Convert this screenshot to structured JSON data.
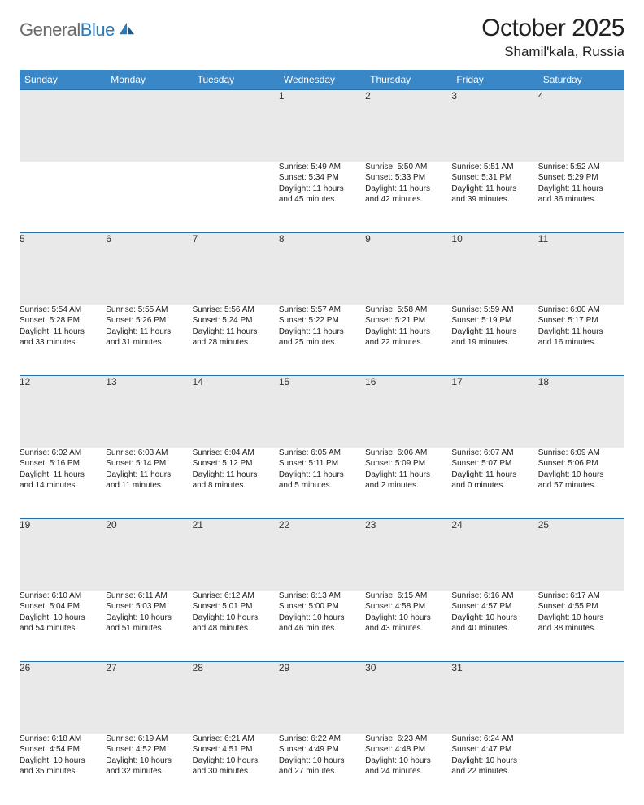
{
  "brand": {
    "part1": "General",
    "part2": "Blue"
  },
  "title": "October 2025",
  "location": "Shamil'kala, Russia",
  "colors": {
    "header_bg": "#3a87c7",
    "header_text": "#ffffff",
    "daynum_bg": "#e9e9e9",
    "border": "#2a6aa0",
    "body_text": "#212121",
    "logo_gray": "#6a6a6a",
    "logo_blue": "#2a7ab9"
  },
  "weekdays": [
    "Sunday",
    "Monday",
    "Tuesday",
    "Wednesday",
    "Thursday",
    "Friday",
    "Saturday"
  ],
  "weeks": [
    [
      null,
      null,
      null,
      {
        "n": "1",
        "sr": "Sunrise: 5:49 AM",
        "ss": "Sunset: 5:34 PM",
        "d1": "Daylight: 11 hours",
        "d2": "and 45 minutes."
      },
      {
        "n": "2",
        "sr": "Sunrise: 5:50 AM",
        "ss": "Sunset: 5:33 PM",
        "d1": "Daylight: 11 hours",
        "d2": "and 42 minutes."
      },
      {
        "n": "3",
        "sr": "Sunrise: 5:51 AM",
        "ss": "Sunset: 5:31 PM",
        "d1": "Daylight: 11 hours",
        "d2": "and 39 minutes."
      },
      {
        "n": "4",
        "sr": "Sunrise: 5:52 AM",
        "ss": "Sunset: 5:29 PM",
        "d1": "Daylight: 11 hours",
        "d2": "and 36 minutes."
      }
    ],
    [
      {
        "n": "5",
        "sr": "Sunrise: 5:54 AM",
        "ss": "Sunset: 5:28 PM",
        "d1": "Daylight: 11 hours",
        "d2": "and 33 minutes."
      },
      {
        "n": "6",
        "sr": "Sunrise: 5:55 AM",
        "ss": "Sunset: 5:26 PM",
        "d1": "Daylight: 11 hours",
        "d2": "and 31 minutes."
      },
      {
        "n": "7",
        "sr": "Sunrise: 5:56 AM",
        "ss": "Sunset: 5:24 PM",
        "d1": "Daylight: 11 hours",
        "d2": "and 28 minutes."
      },
      {
        "n": "8",
        "sr": "Sunrise: 5:57 AM",
        "ss": "Sunset: 5:22 PM",
        "d1": "Daylight: 11 hours",
        "d2": "and 25 minutes."
      },
      {
        "n": "9",
        "sr": "Sunrise: 5:58 AM",
        "ss": "Sunset: 5:21 PM",
        "d1": "Daylight: 11 hours",
        "d2": "and 22 minutes."
      },
      {
        "n": "10",
        "sr": "Sunrise: 5:59 AM",
        "ss": "Sunset: 5:19 PM",
        "d1": "Daylight: 11 hours",
        "d2": "and 19 minutes."
      },
      {
        "n": "11",
        "sr": "Sunrise: 6:00 AM",
        "ss": "Sunset: 5:17 PM",
        "d1": "Daylight: 11 hours",
        "d2": "and 16 minutes."
      }
    ],
    [
      {
        "n": "12",
        "sr": "Sunrise: 6:02 AM",
        "ss": "Sunset: 5:16 PM",
        "d1": "Daylight: 11 hours",
        "d2": "and 14 minutes."
      },
      {
        "n": "13",
        "sr": "Sunrise: 6:03 AM",
        "ss": "Sunset: 5:14 PM",
        "d1": "Daylight: 11 hours",
        "d2": "and 11 minutes."
      },
      {
        "n": "14",
        "sr": "Sunrise: 6:04 AM",
        "ss": "Sunset: 5:12 PM",
        "d1": "Daylight: 11 hours",
        "d2": "and 8 minutes."
      },
      {
        "n": "15",
        "sr": "Sunrise: 6:05 AM",
        "ss": "Sunset: 5:11 PM",
        "d1": "Daylight: 11 hours",
        "d2": "and 5 minutes."
      },
      {
        "n": "16",
        "sr": "Sunrise: 6:06 AM",
        "ss": "Sunset: 5:09 PM",
        "d1": "Daylight: 11 hours",
        "d2": "and 2 minutes."
      },
      {
        "n": "17",
        "sr": "Sunrise: 6:07 AM",
        "ss": "Sunset: 5:07 PM",
        "d1": "Daylight: 11 hours",
        "d2": "and 0 minutes."
      },
      {
        "n": "18",
        "sr": "Sunrise: 6:09 AM",
        "ss": "Sunset: 5:06 PM",
        "d1": "Daylight: 10 hours",
        "d2": "and 57 minutes."
      }
    ],
    [
      {
        "n": "19",
        "sr": "Sunrise: 6:10 AM",
        "ss": "Sunset: 5:04 PM",
        "d1": "Daylight: 10 hours",
        "d2": "and 54 minutes."
      },
      {
        "n": "20",
        "sr": "Sunrise: 6:11 AM",
        "ss": "Sunset: 5:03 PM",
        "d1": "Daylight: 10 hours",
        "d2": "and 51 minutes."
      },
      {
        "n": "21",
        "sr": "Sunrise: 6:12 AM",
        "ss": "Sunset: 5:01 PM",
        "d1": "Daylight: 10 hours",
        "d2": "and 48 minutes."
      },
      {
        "n": "22",
        "sr": "Sunrise: 6:13 AM",
        "ss": "Sunset: 5:00 PM",
        "d1": "Daylight: 10 hours",
        "d2": "and 46 minutes."
      },
      {
        "n": "23",
        "sr": "Sunrise: 6:15 AM",
        "ss": "Sunset: 4:58 PM",
        "d1": "Daylight: 10 hours",
        "d2": "and 43 minutes."
      },
      {
        "n": "24",
        "sr": "Sunrise: 6:16 AM",
        "ss": "Sunset: 4:57 PM",
        "d1": "Daylight: 10 hours",
        "d2": "and 40 minutes."
      },
      {
        "n": "25",
        "sr": "Sunrise: 6:17 AM",
        "ss": "Sunset: 4:55 PM",
        "d1": "Daylight: 10 hours",
        "d2": "and 38 minutes."
      }
    ],
    [
      {
        "n": "26",
        "sr": "Sunrise: 6:18 AM",
        "ss": "Sunset: 4:54 PM",
        "d1": "Daylight: 10 hours",
        "d2": "and 35 minutes."
      },
      {
        "n": "27",
        "sr": "Sunrise: 6:19 AM",
        "ss": "Sunset: 4:52 PM",
        "d1": "Daylight: 10 hours",
        "d2": "and 32 minutes."
      },
      {
        "n": "28",
        "sr": "Sunrise: 6:21 AM",
        "ss": "Sunset: 4:51 PM",
        "d1": "Daylight: 10 hours",
        "d2": "and 30 minutes."
      },
      {
        "n": "29",
        "sr": "Sunrise: 6:22 AM",
        "ss": "Sunset: 4:49 PM",
        "d1": "Daylight: 10 hours",
        "d2": "and 27 minutes."
      },
      {
        "n": "30",
        "sr": "Sunrise: 6:23 AM",
        "ss": "Sunset: 4:48 PM",
        "d1": "Daylight: 10 hours",
        "d2": "and 24 minutes."
      },
      {
        "n": "31",
        "sr": "Sunrise: 6:24 AM",
        "ss": "Sunset: 4:47 PM",
        "d1": "Daylight: 10 hours",
        "d2": "and 22 minutes."
      },
      null
    ]
  ]
}
